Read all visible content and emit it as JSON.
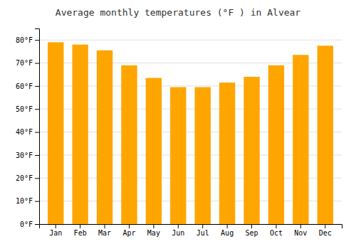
{
  "chart_data": {
    "type": "bar",
    "title": "Average monthly temperatures (°F ) in Alvear",
    "categories": [
      "Jan",
      "Feb",
      "Mar",
      "Apr",
      "May",
      "Jun",
      "Jul",
      "Aug",
      "Sep",
      "Oct",
      "Nov",
      "Dec"
    ],
    "values": [
      79,
      78,
      75.5,
      69,
      63.5,
      59.5,
      59.5,
      61.5,
      64,
      69,
      73.5,
      77.5
    ],
    "color": "#FFA500",
    "ylim": [
      0,
      85
    ],
    "yticks": [
      {
        "value": 0,
        "label": "0°F"
      },
      {
        "value": 10,
        "label": "10°F"
      },
      {
        "value": 20,
        "label": "20°F"
      },
      {
        "value": 30,
        "label": "30°F"
      },
      {
        "value": 40,
        "label": "40°F"
      },
      {
        "value": 50,
        "label": "50°F"
      },
      {
        "value": 60,
        "label": "60°F"
      },
      {
        "value": 70,
        "label": "70°F"
      },
      {
        "value": 80,
        "label": "80°F"
      }
    ],
    "grid": true
  }
}
